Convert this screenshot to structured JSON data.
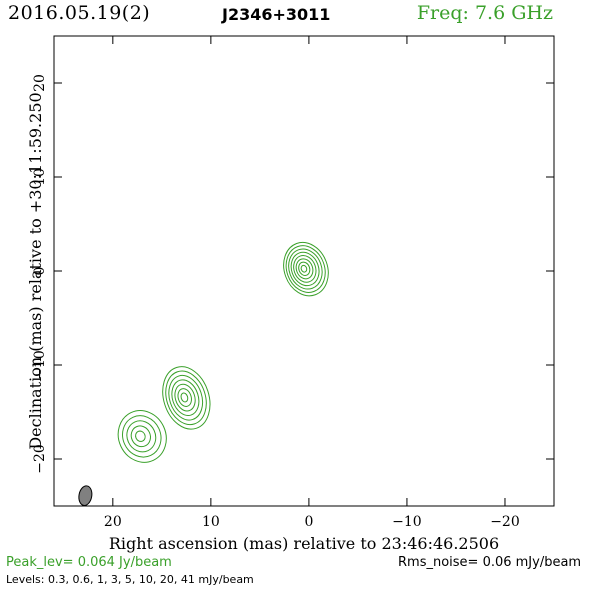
{
  "header": {
    "date": "2016.05.19(2)",
    "source": "J2346+3011",
    "freq": "Freq: 7.6 GHz"
  },
  "footer": {
    "peak": "Peak_lev=  0.064 Jy/beam",
    "rms": "Rms_noise= 0.06 mJy/beam",
    "levels": "Levels: 0.3, 0.6,   1,   3,   5,  10,  20,  41 mJy/beam"
  },
  "colors": {
    "contour": "#3aa02a",
    "beam": "#808080"
  },
  "chart_data": {
    "type": "contour",
    "xlabel": "Right ascension (mas) relative to 23:46:46.2506",
    "ylabel": "Declination (mas) relative to +30:11:59.250",
    "xlim": [
      26,
      -25
    ],
    "ylim": [
      -25,
      25
    ],
    "xticks": [
      20,
      10,
      0,
      -10,
      -20
    ],
    "xtick_labels": [
      "20",
      "10",
      "0",
      "−10",
      "−20"
    ],
    "yticks": [
      20,
      10,
      0,
      -10,
      -20
    ],
    "ytick_labels": [
      "20",
      "10",
      "0",
      "−10",
      "−20"
    ],
    "levels_mJy_per_beam": [
      0.3,
      0.6,
      1,
      3,
      5,
      10,
      20,
      41
    ],
    "components": [
      {
        "ra": 0.3,
        "dec": 0.2,
        "rx": 2.2,
        "ry": 2.9,
        "angle": -20,
        "levels": 8
      },
      {
        "ra": 12.5,
        "dec": -13.5,
        "rx": 2.3,
        "ry": 3.4,
        "angle": -18,
        "levels": 7
      },
      {
        "ra": 17,
        "dec": -17.6,
        "rx": 2.4,
        "ry": 2.8,
        "angle": -25,
        "levels": 5
      }
    ],
    "beam": {
      "ra": 22.8,
      "dec": -23.9,
      "major": 2.1,
      "minor": 1.3,
      "angle": 10
    }
  }
}
